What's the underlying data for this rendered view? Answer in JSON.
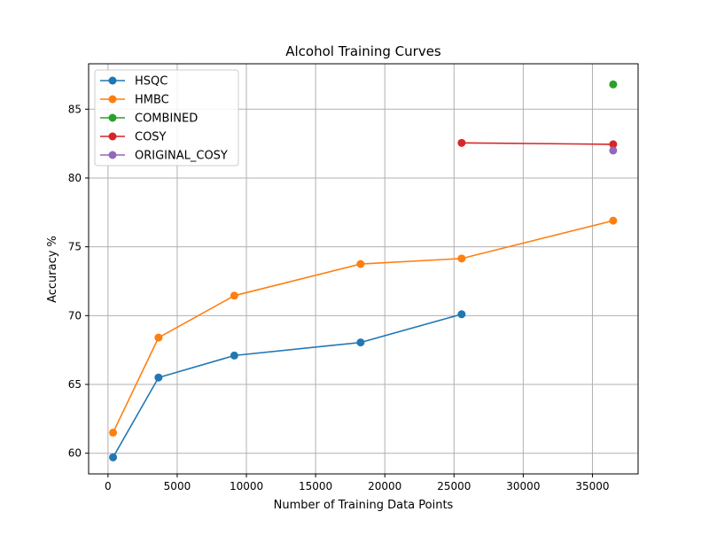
{
  "chart_data": {
    "type": "line",
    "title": "Alcohol Training Curves",
    "xlabel": "Number of Training Data Points",
    "ylabel": "Accuracy %",
    "xlim": [
      -1400,
      38300
    ],
    "ylim": [
      58.5,
      88.3
    ],
    "x_ticks": [
      0,
      5000,
      10000,
      15000,
      20000,
      25000,
      30000,
      35000
    ],
    "y_ticks": [
      60,
      65,
      70,
      75,
      80,
      85
    ],
    "grid": true,
    "legend_position": "upper-left",
    "series": [
      {
        "name": "HSQC",
        "color": "#1f77b4",
        "points": [
          [
            365,
            59.7
          ],
          [
            3650,
            65.5
          ],
          [
            9125,
            67.1
          ],
          [
            18250,
            68.05
          ],
          [
            25550,
            70.1
          ]
        ]
      },
      {
        "name": "HMBC",
        "color": "#ff7f0e",
        "points": [
          [
            365,
            61.5
          ],
          [
            3650,
            68.4
          ],
          [
            9125,
            71.45
          ],
          [
            18250,
            73.75
          ],
          [
            25550,
            74.15
          ],
          [
            36500,
            76.9
          ]
        ]
      },
      {
        "name": "COMBINED",
        "color": "#2ca02c",
        "points": [
          [
            36500,
            86.8
          ]
        ]
      },
      {
        "name": "COSY",
        "color": "#d62728",
        "points": [
          [
            25550,
            82.55
          ],
          [
            36500,
            82.45
          ]
        ]
      },
      {
        "name": "ORIGINAL_COSY",
        "color": "#9467bd",
        "points": [
          [
            36500,
            82.0
          ]
        ]
      }
    ]
  }
}
